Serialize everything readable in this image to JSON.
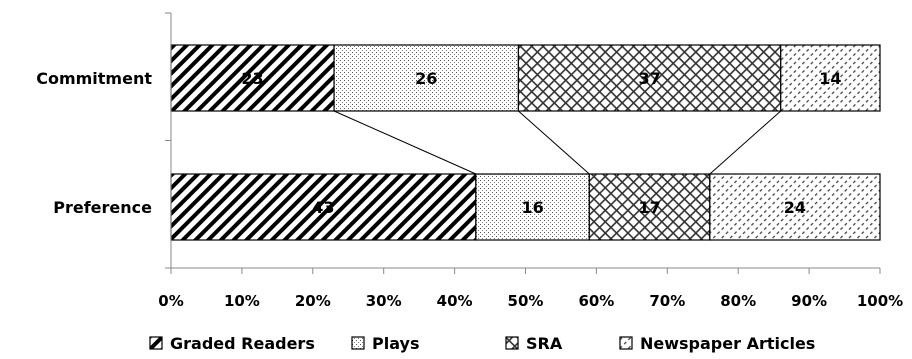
{
  "chart_data": {
    "type": "bar",
    "orientation": "horizontal",
    "stacked": true,
    "percent_stacked": true,
    "categories": [
      "Commitment",
      "Preference"
    ],
    "series": [
      {
        "name": "Graded Readers",
        "values": [
          23,
          43
        ],
        "pattern": "diagonal-hatch"
      },
      {
        "name": "Plays",
        "values": [
          26,
          16
        ],
        "pattern": "dots"
      },
      {
        "name": "SRA",
        "values": [
          37,
          17
        ],
        "pattern": "crosshatch"
      },
      {
        "name": "Newspaper Articles",
        "values": [
          14,
          24
        ],
        "pattern": "dashed-diagonal"
      }
    ],
    "x_ticks": [
      "0%",
      "10%",
      "20%",
      "30%",
      "40%",
      "50%",
      "60%",
      "70%",
      "80%",
      "90%",
      "100%"
    ],
    "xlim": [
      0,
      100
    ],
    "series_lines": true,
    "legend_position": "bottom",
    "grid": false,
    "title": "",
    "xlabel": "",
    "ylabel": ""
  }
}
